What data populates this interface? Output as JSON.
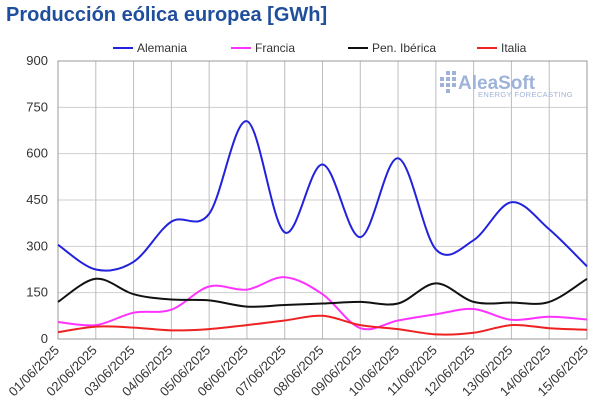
{
  "title": "Producción eólica europea [GWh]",
  "logo": {
    "name": "AleaSoft",
    "tagline": "ENERGY FORECASTING",
    "color": "#1f4e9c"
  },
  "chart_data": {
    "type": "line",
    "title": "Producción eólica europea [GWh]",
    "xlabel": "",
    "ylabel": "",
    "ylim": [
      0,
      900
    ],
    "yticks": [
      0,
      150,
      300,
      450,
      600,
      750,
      900
    ],
    "grid": true,
    "legend_position": "top",
    "x": [
      "01/06/2025",
      "02/06/2025",
      "03/06/2025",
      "04/06/2025",
      "05/06/2025",
      "06/06/2025",
      "07/06/2025",
      "08/06/2025",
      "09/06/2025",
      "10/06/2025",
      "11/06/2025",
      "12/06/2025",
      "13/06/2025",
      "14/06/2025",
      "15/06/2025"
    ],
    "series": [
      {
        "name": "Alemania",
        "color": "#2222dd",
        "values": [
          305,
          225,
          250,
          380,
          405,
          705,
          345,
          565,
          330,
          585,
          290,
          320,
          443,
          355,
          235
        ]
      },
      {
        "name": "Francia",
        "color": "#ff33ff",
        "values": [
          55,
          45,
          85,
          95,
          170,
          160,
          200,
          145,
          35,
          60,
          80,
          97,
          62,
          72,
          63
        ]
      },
      {
        "name": "Pen. Ibérica",
        "color": "#111111",
        "values": [
          120,
          195,
          145,
          128,
          125,
          105,
          110,
          115,
          120,
          115,
          180,
          120,
          118,
          120,
          195
        ]
      },
      {
        "name": "Italia",
        "color": "#ee2222",
        "values": [
          22,
          40,
          37,
          28,
          32,
          45,
          60,
          75,
          45,
          32,
          15,
          20,
          45,
          35,
          30
        ]
      }
    ]
  }
}
